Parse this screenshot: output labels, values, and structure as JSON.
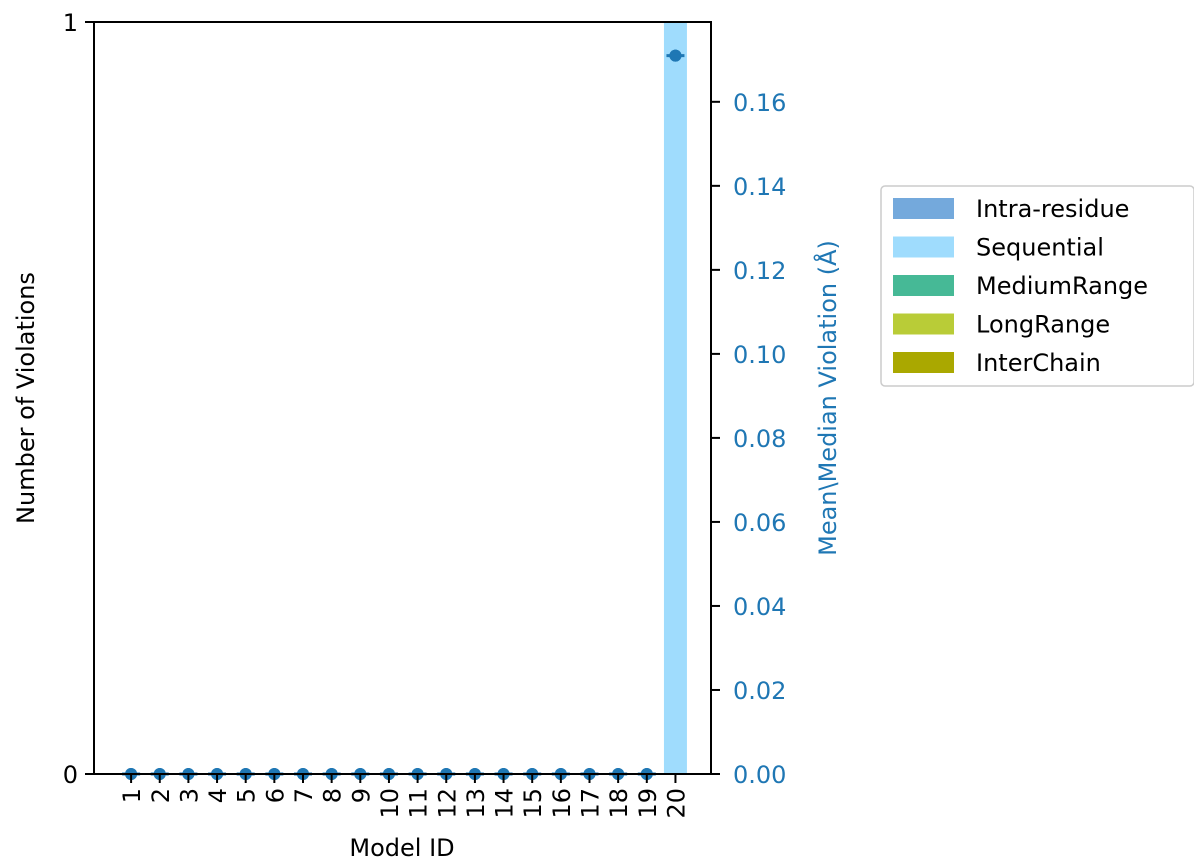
{
  "chart_data": {
    "type": "bar",
    "xlabel": "Model ID",
    "ylabel_left": "Number of Violations",
    "ylabel_right": "Mean\\Median Violation (Å)",
    "categories": [
      "1",
      "2",
      "3",
      "4",
      "5",
      "6",
      "7",
      "8",
      "9",
      "10",
      "11",
      "12",
      "13",
      "14",
      "15",
      "16",
      "17",
      "18",
      "19",
      "20"
    ],
    "left_ylim": [
      0,
      1
    ],
    "left_ticks": [
      "0",
      "1"
    ],
    "right_ylim": [
      0,
      0.179
    ],
    "right_ticks": [
      "0.00",
      "0.02",
      "0.04",
      "0.06",
      "0.08",
      "0.10",
      "0.12",
      "0.14",
      "0.16"
    ],
    "series": [
      {
        "name": "Intra-residue",
        "color": "#74a9dc",
        "values": [
          0,
          0,
          0,
          0,
          0,
          0,
          0,
          0,
          0,
          0,
          0,
          0,
          0,
          0,
          0,
          0,
          0,
          0,
          0,
          0
        ]
      },
      {
        "name": "Sequential",
        "color": "#9fdcfd",
        "values": [
          0,
          0,
          0,
          0,
          0,
          0,
          0,
          0,
          0,
          0,
          0,
          0,
          0,
          0,
          0,
          0,
          0,
          0,
          0,
          1
        ]
      },
      {
        "name": "MediumRange",
        "color": "#46b996",
        "values": [
          0,
          0,
          0,
          0,
          0,
          0,
          0,
          0,
          0,
          0,
          0,
          0,
          0,
          0,
          0,
          0,
          0,
          0,
          0,
          0
        ]
      },
      {
        "name": "LongRange",
        "color": "#b9cc37",
        "values": [
          0,
          0,
          0,
          0,
          0,
          0,
          0,
          0,
          0,
          0,
          0,
          0,
          0,
          0,
          0,
          0,
          0,
          0,
          0,
          0
        ]
      },
      {
        "name": "InterChain",
        "color": "#aaa800",
        "values": [
          0,
          0,
          0,
          0,
          0,
          0,
          0,
          0,
          0,
          0,
          0,
          0,
          0,
          0,
          0,
          0,
          0,
          0,
          0,
          0
        ]
      }
    ],
    "mean_violation": [
      0,
      0,
      0,
      0,
      0,
      0,
      0,
      0,
      0,
      0,
      0,
      0,
      0,
      0,
      0,
      0,
      0,
      0,
      0,
      0.171
    ],
    "median_violation": [
      0,
      0,
      0,
      0,
      0,
      0,
      0,
      0,
      0,
      0,
      0,
      0,
      0,
      0,
      0,
      0,
      0,
      0,
      0,
      0.171
    ],
    "marker_color": "#1f77b4",
    "right_axis_color": "#1f77b4",
    "legend_position": "right, outside plot",
    "grid": false
  }
}
